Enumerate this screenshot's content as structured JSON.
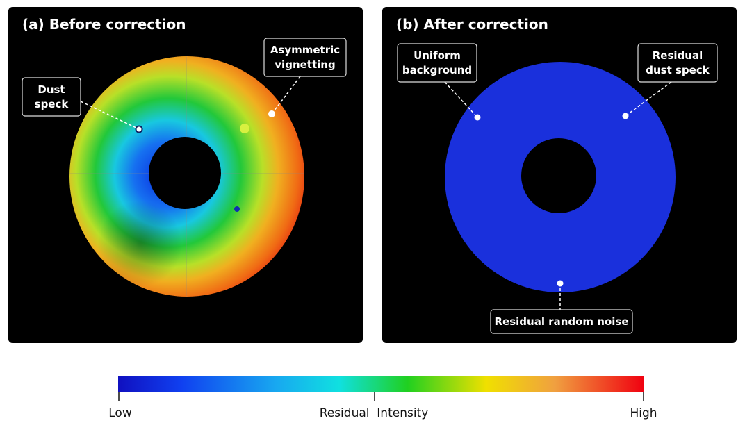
{
  "panels": [
    {
      "title": "(a) Before correction",
      "annotations": [
        {
          "lines": [
            "Dust",
            "speck"
          ]
        },
        {
          "lines": [
            "Asymmetric",
            "vignetting"
          ]
        }
      ]
    },
    {
      "title": "(b) After correction",
      "annotations": [
        {
          "lines": [
            "Uniform",
            "background"
          ]
        },
        {
          "lines": [
            "Residual",
            "dust speck"
          ]
        },
        {
          "lines": [
            "Residual random noise"
          ]
        }
      ]
    }
  ],
  "colorbar": {
    "low": "Low",
    "title": "Residual  Intensity",
    "high": "High"
  }
}
